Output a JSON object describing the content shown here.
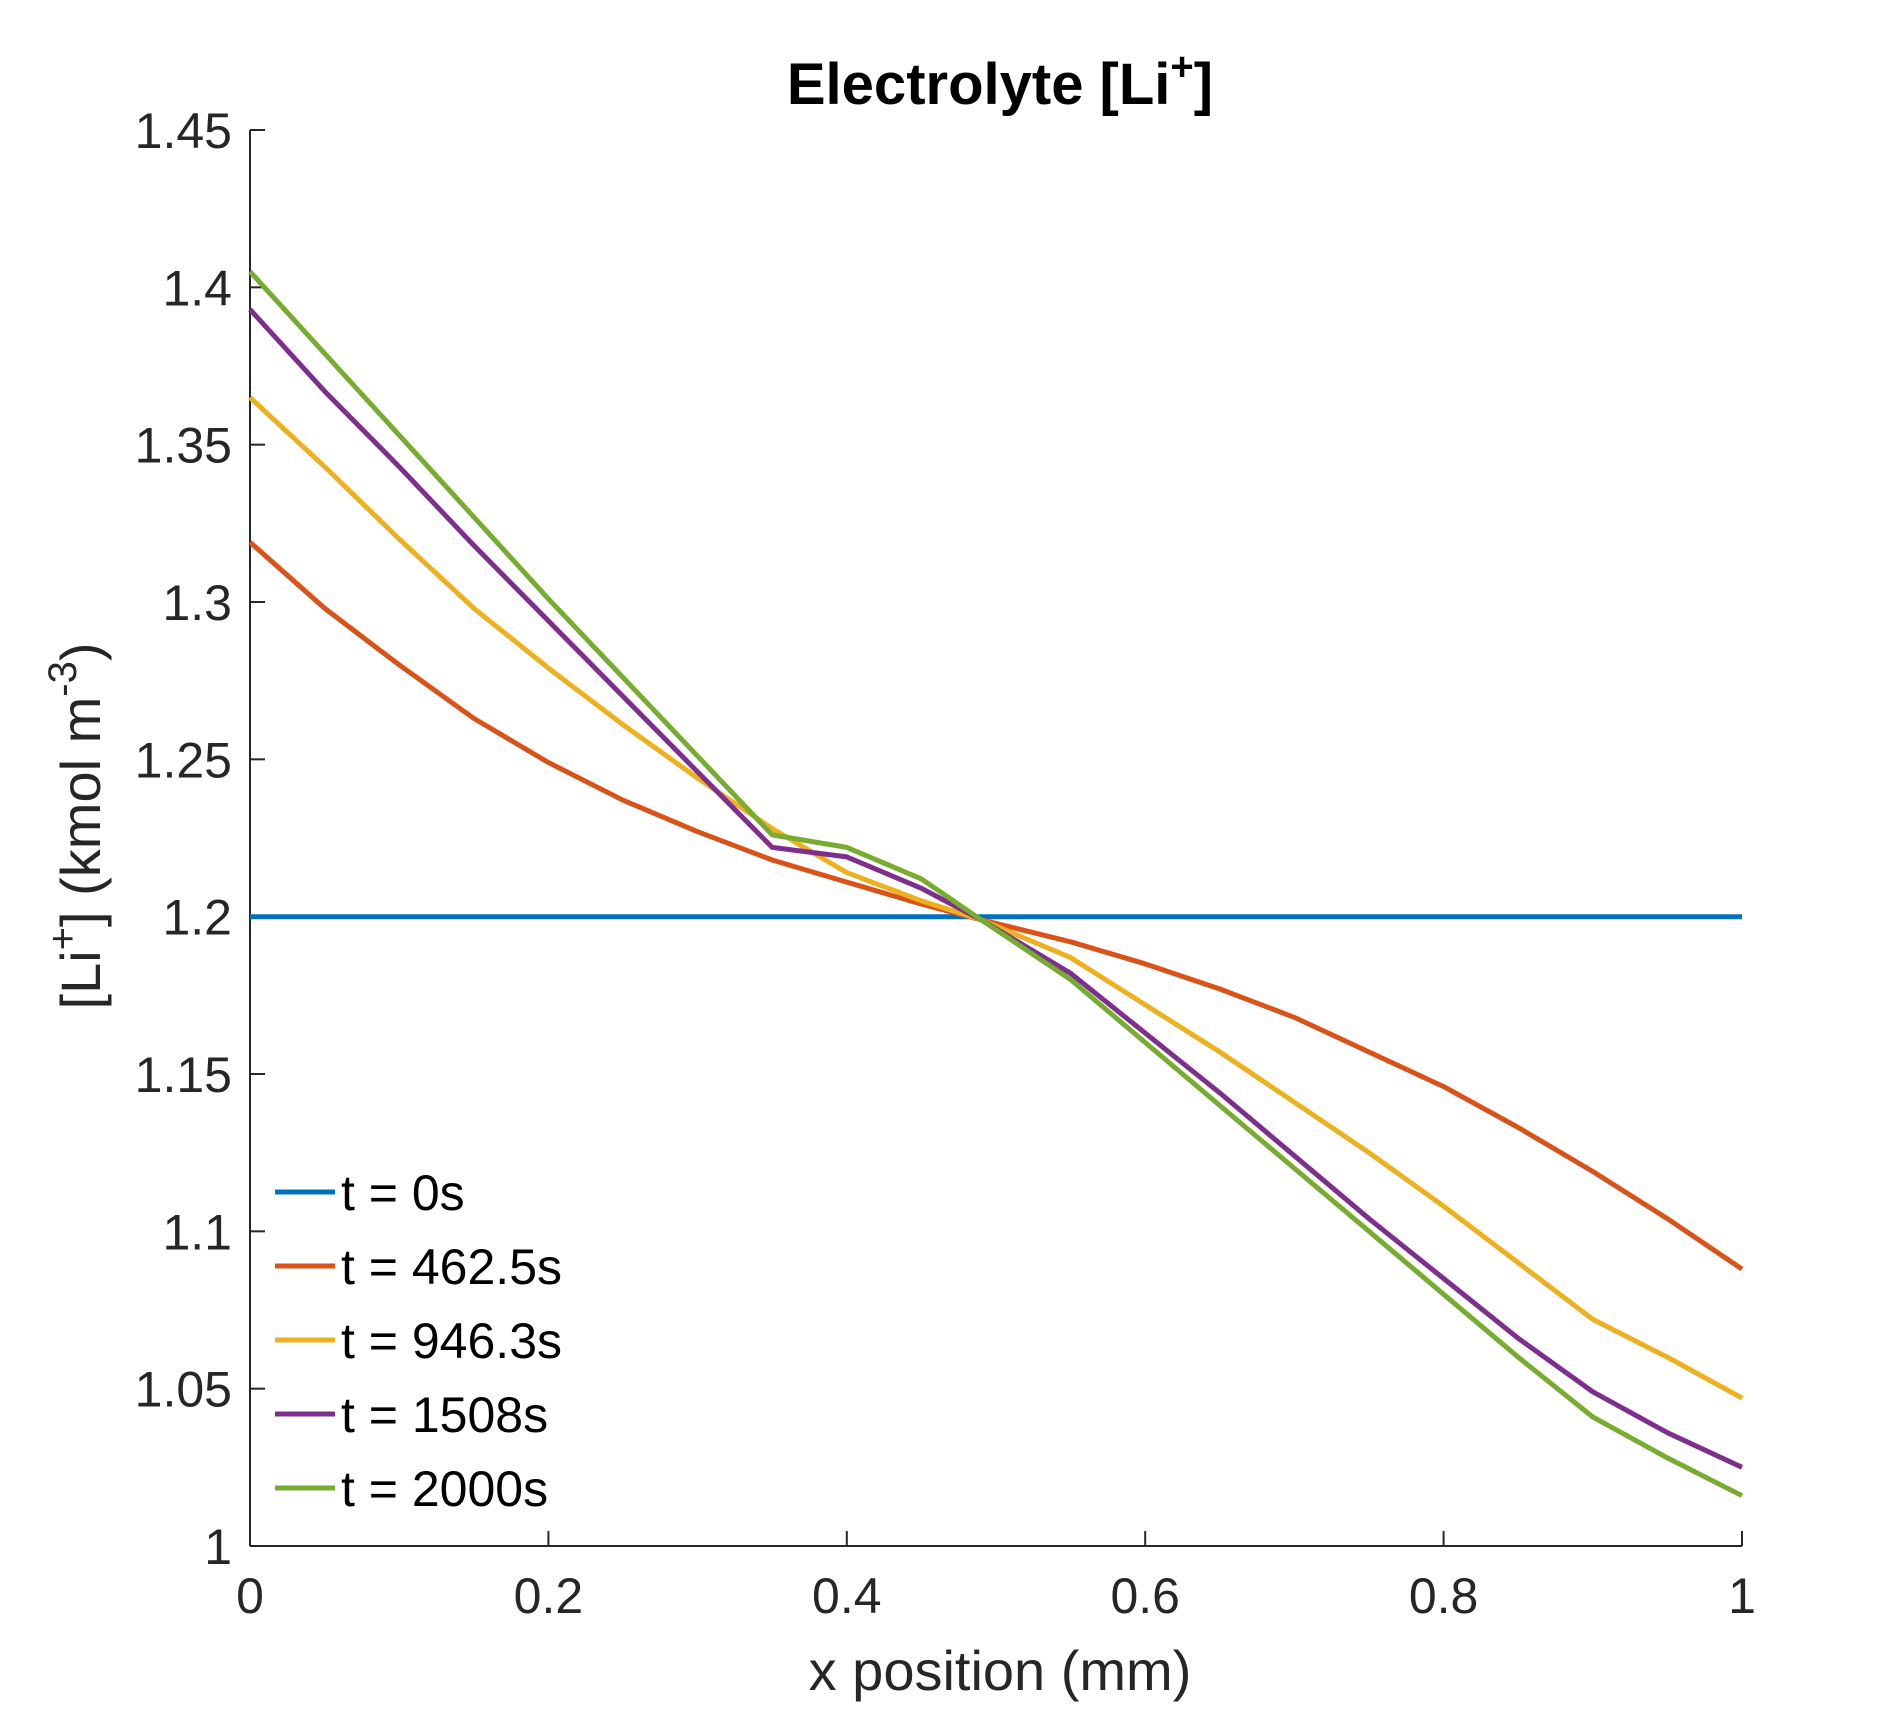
{
  "chart_data": {
    "type": "line",
    "title": {
      "prefix": "Electrolyte [Li",
      "sup": "+",
      "suffix": "]"
    },
    "xlabel": "x position (mm)",
    "ylabel": {
      "prefix": "[Li",
      "sup1": "+",
      "mid": "] (kmol m",
      "sup2": "-3",
      "suffix": ")"
    },
    "xlim": [
      0,
      1
    ],
    "ylim": [
      1,
      1.45
    ],
    "xticks": [
      0,
      0.2,
      0.4,
      0.6,
      0.8,
      1
    ],
    "xtick_labels": [
      "0",
      "0.2",
      "0.4",
      "0.6",
      "0.8",
      "1"
    ],
    "yticks": [
      1,
      1.05,
      1.1,
      1.15,
      1.2,
      1.25,
      1.3,
      1.35,
      1.4,
      1.45
    ],
    "ytick_labels": [
      "1",
      "1.05",
      "1.1",
      "1.15",
      "1.2",
      "1.25",
      "1.3",
      "1.35",
      "1.4",
      "1.45"
    ],
    "grid": false,
    "legend_position": "bottom-left",
    "x": [
      0,
      0.05,
      0.1,
      0.15,
      0.2,
      0.25,
      0.3,
      0.35,
      0.4,
      0.45,
      0.49,
      0.55,
      0.6,
      0.65,
      0.7,
      0.75,
      0.8,
      0.85,
      0.9,
      0.95,
      1.0
    ],
    "series": [
      {
        "name": "t = 0s",
        "color": "#0072BD",
        "values": [
          1.2,
          1.2,
          1.2,
          1.2,
          1.2,
          1.2,
          1.2,
          1.2,
          1.2,
          1.2,
          1.2,
          1.2,
          1.2,
          1.2,
          1.2,
          1.2,
          1.2,
          1.2,
          1.2,
          1.2,
          1.2
        ]
      },
      {
        "name": "t = 462.5s",
        "color": "#D95319",
        "values": [
          1.319,
          1.298,
          1.28,
          1.263,
          1.249,
          1.237,
          1.227,
          1.218,
          1.211,
          1.204,
          1.199,
          1.192,
          1.185,
          1.177,
          1.168,
          1.157,
          1.146,
          1.133,
          1.119,
          1.104,
          1.088
        ]
      },
      {
        "name": "t = 946.3s",
        "color": "#EDB120",
        "values": [
          1.365,
          1.343,
          1.32,
          1.298,
          1.279,
          1.261,
          1.244,
          1.228,
          1.214,
          1.205,
          1.199,
          1.187,
          1.172,
          1.157,
          1.141,
          1.125,
          1.108,
          1.09,
          1.072,
          1.06,
          1.047
        ]
      },
      {
        "name": "t = 1508s",
        "color": "#7E2F8E",
        "values": [
          1.393,
          1.367,
          1.343,
          1.318,
          1.294,
          1.27,
          1.246,
          1.222,
          1.219,
          1.209,
          1.199,
          1.182,
          1.163,
          1.144,
          1.124,
          1.104,
          1.085,
          1.066,
          1.049,
          1.036,
          1.025
        ]
      },
      {
        "name": "t = 2000s",
        "color": "#77AC30",
        "values": [
          1.405,
          1.379,
          1.353,
          1.327,
          1.301,
          1.276,
          1.251,
          1.226,
          1.222,
          1.212,
          1.199,
          1.18,
          1.16,
          1.14,
          1.12,
          1.1,
          1.08,
          1.06,
          1.041,
          1.028,
          1.016
        ]
      }
    ]
  }
}
